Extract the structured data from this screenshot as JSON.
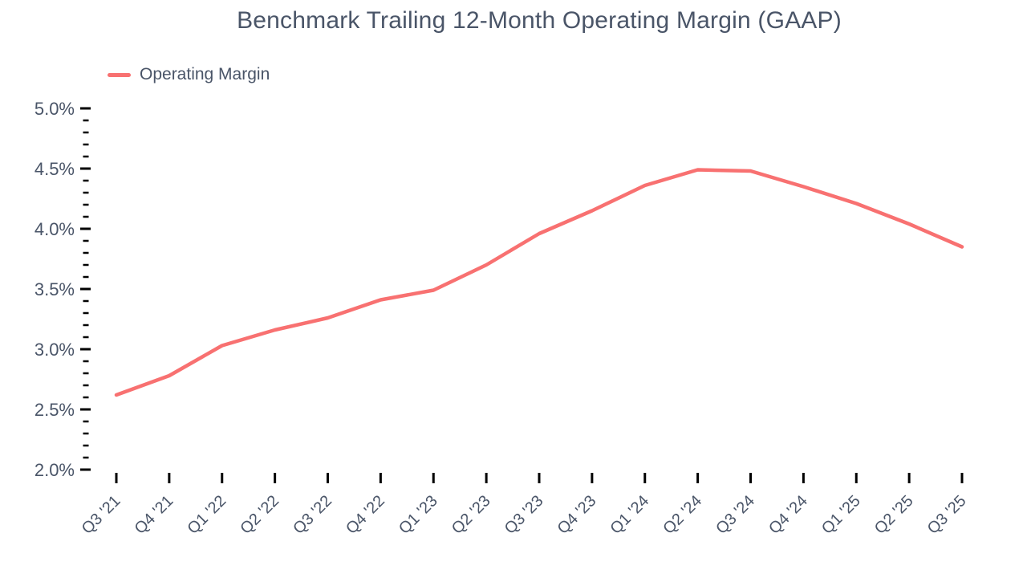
{
  "style": {
    "background": "#ffffff",
    "text_color": "#4a5568",
    "tick_color": "#000000",
    "accent": "#f87171"
  },
  "chart_data": {
    "type": "line",
    "title": "Benchmark Trailing 12-Month Operating Margin (GAAP)",
    "legend": [
      {
        "label": "Operating Margin",
        "color": "#f87171"
      }
    ],
    "legend_position": "top-left",
    "grid": false,
    "categories": [
      "Q3 '21",
      "Q4 '21",
      "Q1 '22",
      "Q2 '22",
      "Q3 '22",
      "Q4 '22",
      "Q1 '23",
      "Q2 '23",
      "Q3 '23",
      "Q4 '23",
      "Q1 '24",
      "Q2 '24",
      "Q3 '24",
      "Q4 '24",
      "Q1 '25",
      "Q2 '25",
      "Q3 '25"
    ],
    "series": [
      {
        "name": "Operating Margin",
        "color": "#f87171",
        "values": [
          2.62,
          2.78,
          3.03,
          3.16,
          3.26,
          3.41,
          3.49,
          3.7,
          3.96,
          4.15,
          4.36,
          4.49,
          4.48,
          4.35,
          4.21,
          4.04,
          3.85
        ]
      }
    ],
    "xlabel": "",
    "ylabel": "",
    "ylim": [
      2.0,
      5.0
    ],
    "ytick_step_major": 0.5,
    "ytick_step_minor": 0.1,
    "ytick_format": "{value:.1f}%"
  }
}
